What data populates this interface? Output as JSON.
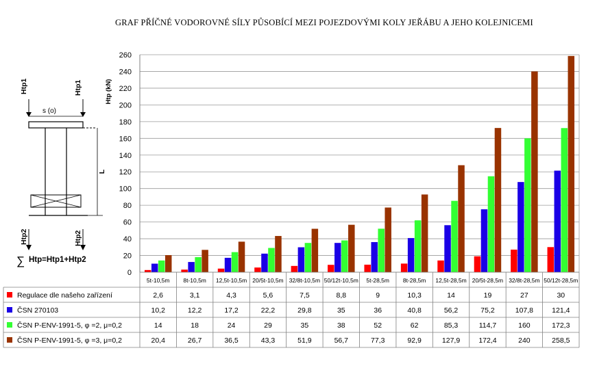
{
  "title": "GRAF PŘÍČNÉ VODOROVNÉ SÍLY PŮSOBÍCÍ MEZI POJEZDOVÝMI KOLY JEŘÁBU A JEHO KOLEJNICEMI",
  "colors": {
    "series_1": "#ff0000",
    "series_2": "#1a00e6",
    "series_3": "#33ff33",
    "series_4": "#993300"
  },
  "diagram": {
    "htp1_left": "Htp1",
    "htp1_right": "Htp1",
    "span_label": "s (o)",
    "length_label": "L",
    "htp2_left": "Htp2",
    "htp2_right": "Htp2",
    "sigma": "∑",
    "formula": "Htp=Htp1+Htp2"
  },
  "chart_data": {
    "type": "bar",
    "title": "GRAF PŘÍČNÉ VODOROVNÉ SÍLY PŮSOBÍCÍ MEZI POJEZDOVÝMI KOLY JEŘÁBU A JEHO KOLEJNICEMI",
    "ylabel": "Htp (kN)",
    "ylim": [
      0,
      260
    ],
    "yticks": [
      0,
      20,
      40,
      60,
      80,
      100,
      120,
      140,
      160,
      180,
      200,
      220,
      240,
      260
    ],
    "grid": true,
    "legend": "data-table",
    "categories": [
      "5t-10,5m",
      "8t-10,5m",
      "12,5t-10,5m",
      "20/5t-10,5m",
      "32/8t-10,5m",
      "50/12t-10,5m",
      "5t-28,5m",
      "8t-28,5m",
      "12,5t-28,5m",
      "20/5t-28,5m",
      "32/8t-28,5m",
      "50/12t-28,5m"
    ],
    "series": [
      {
        "name": "Regulace dle našeho zařízení",
        "color": "#ff0000",
        "values": [
          2.6,
          3.1,
          4.3,
          5.6,
          7.5,
          8.8,
          9,
          10.3,
          14,
          19,
          27,
          30
        ],
        "labels": [
          "2,6",
          "3,1",
          "4,3",
          "5,6",
          "7,5",
          "8,8",
          "9",
          "10,3",
          "14",
          "19",
          "27",
          "30"
        ]
      },
      {
        "name": "ČSN 270103",
        "color": "#1a00e6",
        "values": [
          10.2,
          12.2,
          17.2,
          22.2,
          29.8,
          35,
          36,
          40.8,
          56.2,
          75.2,
          107.8,
          121.4
        ],
        "labels": [
          "10,2",
          "12,2",
          "17,2",
          "22,2",
          "29,8",
          "35",
          "36",
          "40,8",
          "56,2",
          "75,2",
          "107,8",
          "121,4"
        ]
      },
      {
        "name": "ČSN P-ENV-1991-5, φ =2, μ=0,2",
        "color": "#33ff33",
        "values": [
          14,
          18,
          24,
          29,
          35,
          38,
          52,
          62,
          85.3,
          114.7,
          160,
          172.3
        ],
        "labels": [
          "14",
          "18",
          "24",
          "29",
          "35",
          "38",
          "52",
          "62",
          "85,3",
          "114,7",
          "160",
          "172,3"
        ]
      },
      {
        "name": "ČSN P-ENV-1991-5, φ =3, μ=0,2",
        "color": "#993300",
        "values": [
          20.4,
          26.7,
          36.5,
          43.3,
          51.9,
          56.7,
          77.3,
          92.9,
          127.9,
          172.4,
          240,
          258.5
        ],
        "labels": [
          "20,4",
          "26,7",
          "36,5",
          "43,3",
          "51,9",
          "56,7",
          "77,3",
          "92,9",
          "127,9",
          "172,4",
          "240",
          "258,5"
        ]
      }
    ]
  }
}
